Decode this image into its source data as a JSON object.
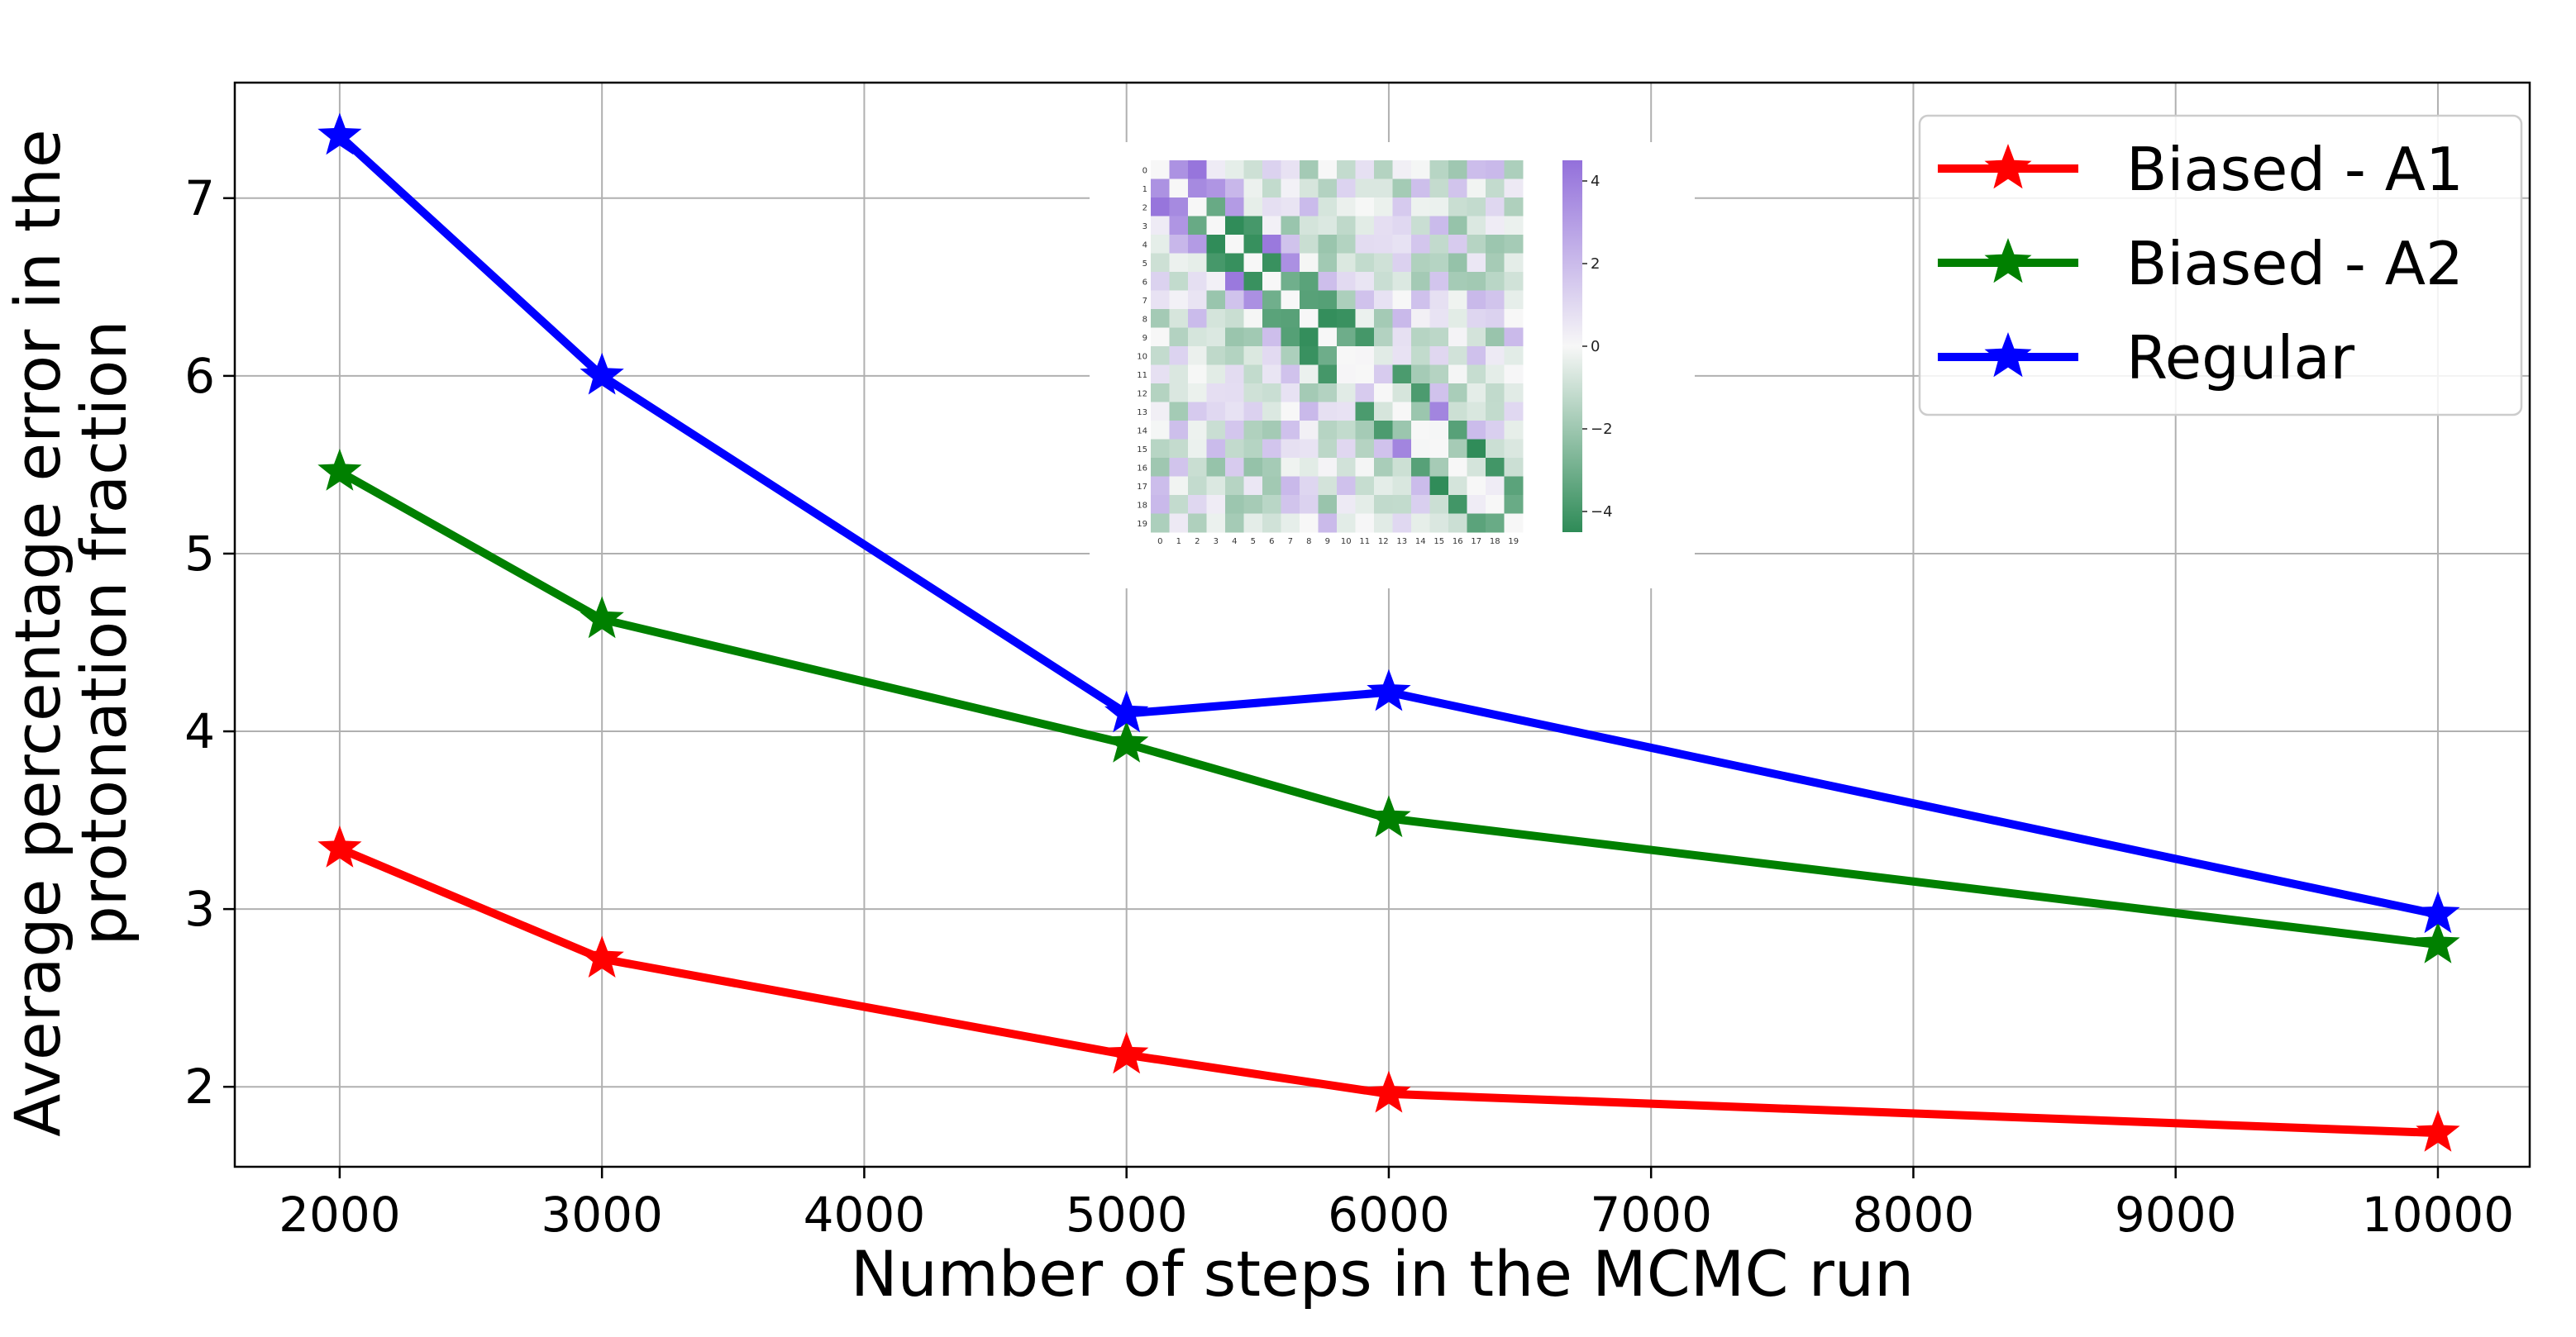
{
  "chart_data": {
    "type": "line",
    "title": "",
    "xlabel": "Number of steps in the MCMC run",
    "ylabel_lines": [
      "Average percentage error in the",
      "protonation fraction"
    ],
    "xlim": [
      1600,
      10350
    ],
    "ylim": [
      1.55,
      7.65
    ],
    "x_ticks": [
      2000,
      3000,
      4000,
      5000,
      6000,
      7000,
      8000,
      9000,
      10000
    ],
    "y_ticks": [
      2,
      3,
      4,
      5,
      6,
      7
    ],
    "grid": true,
    "legend_position": "top-right",
    "marker": "star",
    "x": [
      2000,
      3000,
      5000,
      6000,
      10000
    ],
    "series": [
      {
        "name": "Biased - A1",
        "color": "#ff0000",
        "values": [
          3.34,
          2.72,
          2.18,
          1.96,
          1.74
        ]
      },
      {
        "name": "Biased - A2",
        "color": "#008000",
        "values": [
          5.46,
          4.63,
          3.93,
          3.51,
          2.8
        ]
      },
      {
        "name": "Regular",
        "color": "#0000ff",
        "values": [
          7.35,
          6.0,
          4.1,
          4.22,
          2.97
        ]
      }
    ],
    "inset": {
      "type": "heatmap",
      "axis_ticks": [
        "0",
        "1",
        "2",
        "3",
        "4",
        "5",
        "6",
        "7",
        "8",
        "9",
        "10",
        "11",
        "12",
        "13",
        "14",
        "15",
        "16",
        "17",
        "18",
        "19"
      ],
      "colorbar_ticks": [
        "4",
        "2",
        "0",
        "−2",
        "−4"
      ],
      "colorbar_range": [
        -4.5,
        4.5
      ],
      "colors": {
        "high": "#9370db",
        "mid": "#f7f7f7",
        "low": "#2e8b57"
      }
    }
  }
}
